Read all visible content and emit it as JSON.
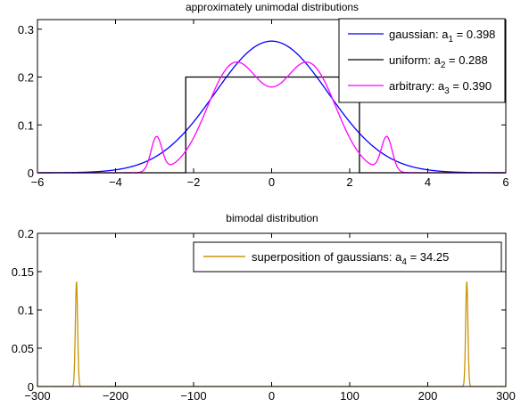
{
  "chart_data": [
    {
      "type": "line",
      "title": "approximately unimodal distributions",
      "xlim": [
        -6,
        6
      ],
      "ylim": [
        0,
        0.32
      ],
      "xticks": [
        "−6",
        "−4",
        "−2",
        "0",
        "2",
        "4",
        "6"
      ],
      "xtick_values": [
        -6,
        -4,
        -2,
        0,
        2,
        4,
        6
      ],
      "yticks": [
        "0",
        "0.1",
        "0.2",
        "0.3"
      ],
      "ytick_values": [
        0,
        0.1,
        0.2,
        0.3
      ],
      "legend_position": "top-right",
      "series": [
        {
          "name": "gaussian",
          "legend_prefix": "gaussian: a",
          "legend_sub": "1",
          "legend_suffix": " = 0.398",
          "color": "#0000ff",
          "kind": "gaussian",
          "mean": 0,
          "sigma": 1.45,
          "peak": 0.275
        },
        {
          "name": "uniform",
          "legend_prefix": "uniform: a",
          "legend_sub": "2",
          "legend_suffix": " = 0.288",
          "color": "#000000",
          "kind": "uniform",
          "range": [
            -2.2,
            2.25
          ],
          "height": 0.2
        },
        {
          "name": "arbitrary",
          "legend_prefix": "arbitrary: a",
          "legend_sub": "3",
          "legend_suffix": " = 0.390",
          "color": "#ff00ff",
          "kind": "mixture",
          "components": [
            {
              "mean": -0.95,
              "sigma": 0.7,
              "peak": 0.225
            },
            {
              "mean": 0.95,
              "sigma": 0.7,
              "peak": 0.225
            },
            {
              "mean": -2.95,
              "sigma": 0.14,
              "peak": 0.072
            },
            {
              "mean": 2.95,
              "sigma": 0.14,
              "peak": 0.072
            }
          ]
        }
      ]
    },
    {
      "type": "line",
      "title": "bimodal distribution",
      "xlim": [
        -300,
        300
      ],
      "ylim": [
        0,
        0.2
      ],
      "xticks": [
        "−300",
        "−200",
        "−100",
        "0",
        "100",
        "200",
        "300"
      ],
      "xtick_values": [
        -300,
        -200,
        -100,
        0,
        100,
        200,
        300
      ],
      "yticks": [
        "0",
        "0.05",
        "0.1",
        "0.15",
        "0.2"
      ],
      "ytick_values": [
        0,
        0.05,
        0.1,
        0.15,
        0.2
      ],
      "legend_position": "top-right",
      "series": [
        {
          "name": "superposition of gaussians",
          "legend_prefix": "superposition of gaussians: a",
          "legend_sub": "4",
          "legend_suffix": " = 34.25",
          "color": "#c8960a",
          "kind": "mixture",
          "components": [
            {
              "mean": -250,
              "sigma": 1.45,
              "peak": 0.137
            },
            {
              "mean": 250,
              "sigma": 1.45,
              "peak": 0.137
            }
          ]
        }
      ]
    }
  ]
}
